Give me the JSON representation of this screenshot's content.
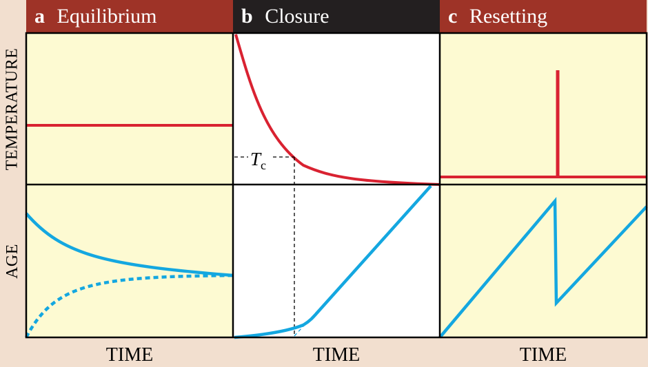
{
  "panels": [
    {
      "letter": "a",
      "title": "Equilibrium",
      "header_color": "#9e3327"
    },
    {
      "letter": "b",
      "title": "Closure",
      "header_color": "#231f20"
    },
    {
      "letter": "c",
      "title": "Resetting",
      "header_color": "#9e3327"
    }
  ],
  "axes": {
    "temperature_label": "TEMPERATURE",
    "age_label": "AGE",
    "time_labels": [
      "TIME",
      "TIME",
      "TIME"
    ]
  },
  "annotation": {
    "main": "T",
    "subscript": "c"
  },
  "colors": {
    "temperature_line": "#d92231",
    "age_line": "#14a7e0",
    "panel_fill": "#fdfad2",
    "closure_fill": "#ffffff",
    "background": "#f2dfcf",
    "text_on_header": "#ffffff"
  }
}
